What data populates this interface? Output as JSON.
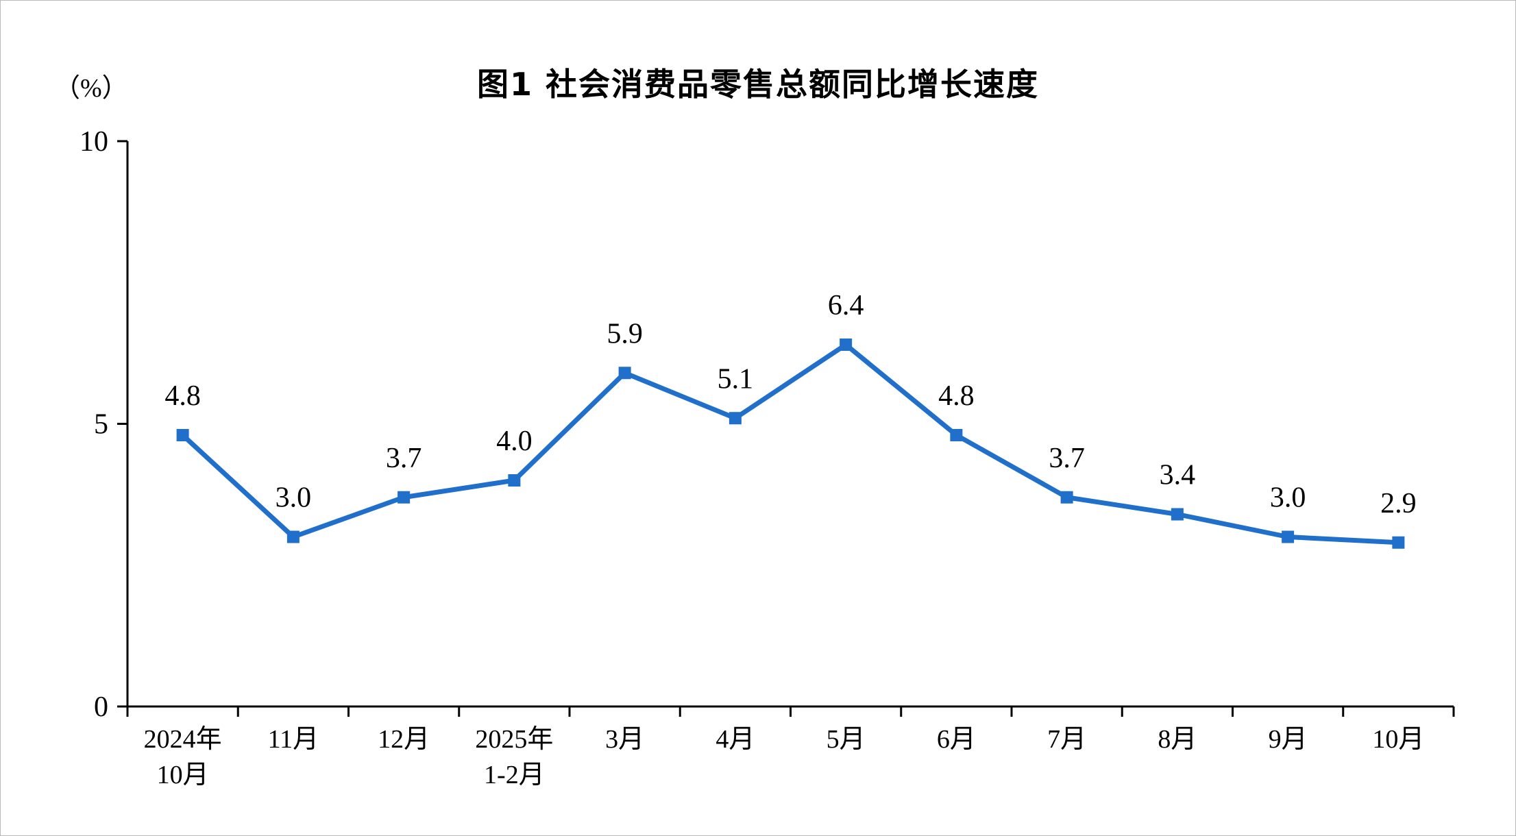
{
  "page": {
    "background": "#ffffff",
    "border_color": "#b9b9b9"
  },
  "chart_data": {
    "type": "line",
    "title": "图1 社会消费品零售总额同比增长速度",
    "ylabel": "（%）",
    "xlabel": "",
    "categories": [
      "2024年\n10月",
      "11月",
      "12月",
      "2025年\n1-2月",
      "3月",
      "4月",
      "5月",
      "6月",
      "7月",
      "8月",
      "9月",
      "10月"
    ],
    "values": [
      4.8,
      3.0,
      3.7,
      4.0,
      5.9,
      5.1,
      6.4,
      4.8,
      3.7,
      3.4,
      3.0,
      2.9
    ],
    "data_labels": [
      "4.8",
      "3.0",
      "3.7",
      "4.0",
      "5.9",
      "5.1",
      "6.4",
      "4.8",
      "3.7",
      "3.4",
      "3.0",
      "2.9"
    ],
    "ylim": [
      0,
      10
    ],
    "yticks": [
      0,
      5,
      10
    ],
    "line_color": "#1f6fcb",
    "marker": "square",
    "axis_color": "#000000",
    "grid": false,
    "legend": "none"
  }
}
